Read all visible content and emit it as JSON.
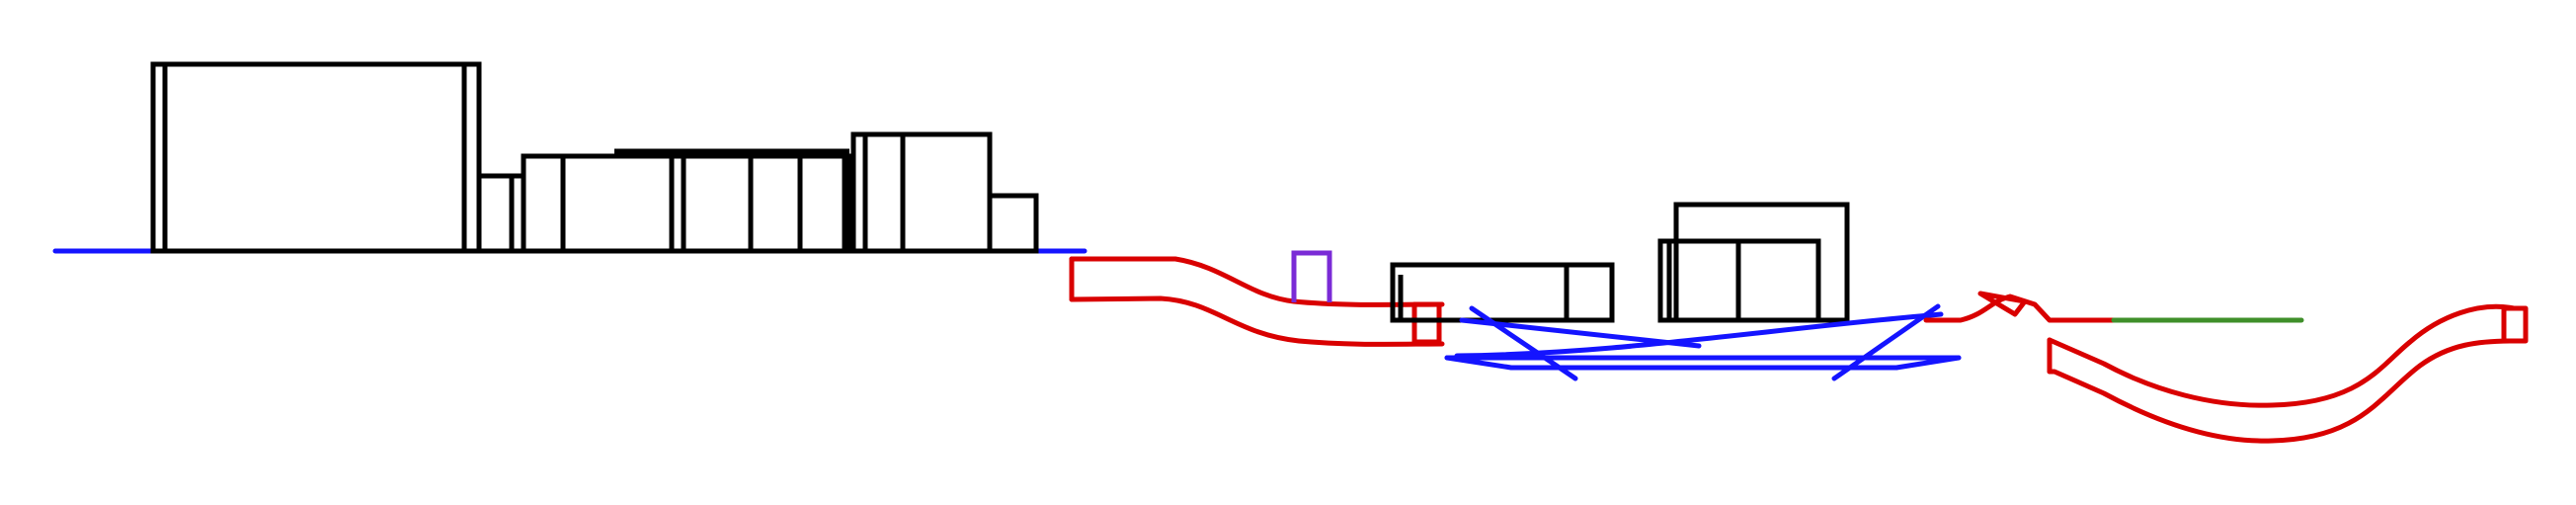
{
  "colors": {
    "background": "#ffffff",
    "building_outline": "#000000",
    "ground_line": "#1414ff",
    "red_path": "#d90000",
    "purple_box": "#7a2bd6",
    "green_line": "#3f8f2a"
  }
}
